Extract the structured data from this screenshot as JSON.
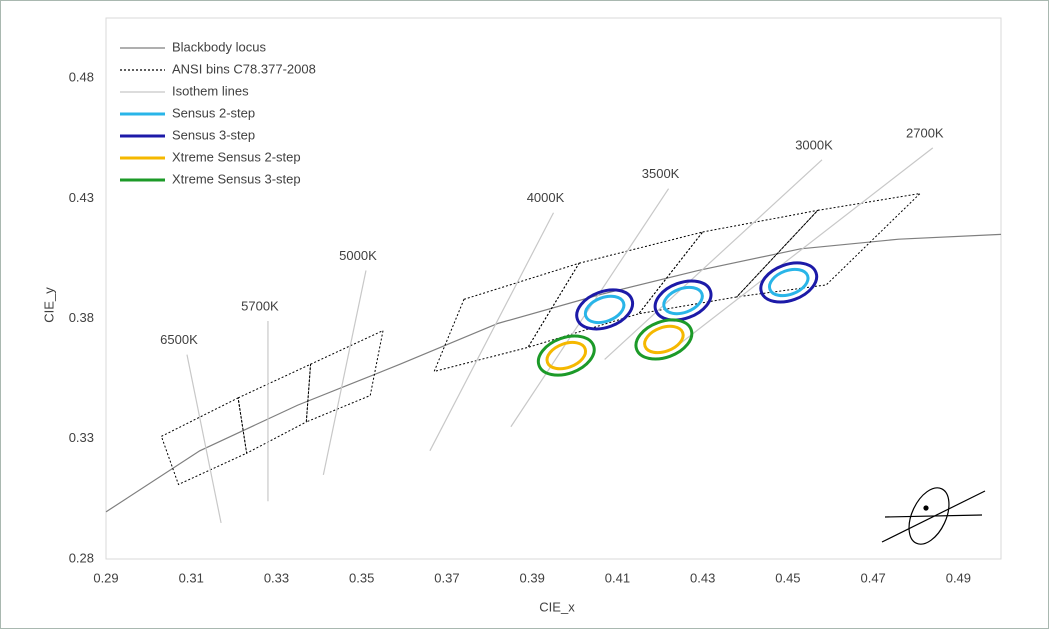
{
  "chart_data": {
    "type": "line",
    "x_label": "CIE_x",
    "y_label": "CIE_y",
    "xlim": [
      0.29,
      0.5
    ],
    "ylim": [
      0.28,
      0.505
    ],
    "xticks": [
      0.29,
      0.31,
      0.33,
      0.35,
      0.37,
      0.39,
      0.41,
      0.43,
      0.45,
      0.47,
      0.49
    ],
    "yticks": [
      0.28,
      0.33,
      0.38,
      0.43,
      0.48
    ],
    "grid": false,
    "series": [
      {
        "name": "Blackbody locus",
        "color": "#7f7f7f",
        "style": "solid",
        "closed": false,
        "segments": [
          {
            "x": [
              0.29,
              0.312,
              0.335,
              0.359,
              0.382,
              0.406,
              0.429,
              0.453,
              0.476,
              0.5
            ],
            "y": [
              0.2996,
              0.325,
              0.344,
              0.361,
              0.378,
              0.39,
              0.4,
              0.409,
              0.413,
              0.415
            ]
          }
        ]
      },
      {
        "name": "ANSI bins C78.377-2008",
        "color": "#000000",
        "style": "dotted",
        "closed": true,
        "segments": [
          {
            "x": [
              0.303,
              0.321,
              0.323,
              0.307
            ],
            "y": [
              0.331,
              0.347,
              0.324,
              0.311
            ]
          },
          {
            "x": [
              0.321,
              0.338,
              0.337,
              0.323
            ],
            "y": [
              0.347,
              0.361,
              0.337,
              0.324
            ]
          },
          {
            "x": [
              0.338,
              0.355,
              0.352,
              0.337
            ],
            "y": [
              0.361,
              0.375,
              0.348,
              0.337
            ]
          },
          {
            "x": [
              0.374,
              0.401,
              0.389,
              0.367
            ],
            "y": [
              0.388,
              0.403,
              0.368,
              0.358
            ]
          },
          {
            "x": [
              0.401,
              0.43,
              0.415,
              0.389
            ],
            "y": [
              0.403,
              0.416,
              0.382,
              0.368
            ]
          },
          {
            "x": [
              0.43,
              0.457,
              0.438,
              0.415
            ],
            "y": [
              0.416,
              0.425,
              0.389,
              0.382
            ]
          },
          {
            "x": [
              0.457,
              0.481,
              0.459,
              0.438
            ],
            "y": [
              0.425,
              0.432,
              0.394,
              0.389
            ]
          }
        ]
      },
      {
        "name": "Isothem lines",
        "color": "#c8c8c8",
        "style": "solid",
        "closed": false,
        "segments": [
          {
            "label": "6500K",
            "x": [
              0.309,
              0.317
            ],
            "y": [
              0.365,
              0.295
            ]
          },
          {
            "label": "5700K",
            "x": [
              0.328,
              0.328
            ],
            "y": [
              0.379,
              0.304
            ]
          },
          {
            "label": "5000K",
            "x": [
              0.351,
              0.341
            ],
            "y": [
              0.4,
              0.315
            ]
          },
          {
            "label": "4000K",
            "x": [
              0.395,
              0.366
            ],
            "y": [
              0.424,
              0.325
            ]
          },
          {
            "label": "3500K",
            "x": [
              0.422,
              0.385
            ],
            "y": [
              0.434,
              0.335
            ]
          },
          {
            "label": "3000K",
            "x": [
              0.458,
              0.407
            ],
            "y": [
              0.446,
              0.363
            ]
          },
          {
            "label": "2700K",
            "x": [
              0.484,
              0.425
            ],
            "y": [
              0.451,
              0.37
            ]
          }
        ]
      },
      {
        "name": "Sensus 2-step",
        "color": "#29b5e8",
        "ellipses": [
          {
            "cx": 0.407,
            "cy": 0.3838,
            "a": 0.0047,
            "b": 0.0028,
            "angle": 20
          },
          {
            "cx": 0.4254,
            "cy": 0.3875,
            "a": 0.0047,
            "b": 0.0028,
            "angle": 20
          },
          {
            "cx": 0.4502,
            "cy": 0.395,
            "a": 0.0047,
            "b": 0.0028,
            "angle": 20
          }
        ]
      },
      {
        "name": "Sensus 3-step",
        "color": "#1c1aa8",
        "ellipses": [
          {
            "cx": 0.407,
            "cy": 0.3838,
            "a": 0.0068,
            "b": 0.0042,
            "angle": 20
          },
          {
            "cx": 0.4254,
            "cy": 0.3875,
            "a": 0.0068,
            "b": 0.0042,
            "angle": 20
          },
          {
            "cx": 0.4502,
            "cy": 0.395,
            "a": 0.0068,
            "b": 0.0042,
            "angle": 20
          }
        ]
      },
      {
        "name": "Xtreme Sensus 2-step",
        "color": "#f5b800",
        "ellipses": [
          {
            "cx": 0.398,
            "cy": 0.3646,
            "a": 0.0047,
            "b": 0.0028,
            "angle": 20
          },
          {
            "cx": 0.4209,
            "cy": 0.3713,
            "a": 0.0047,
            "b": 0.0028,
            "angle": 20
          }
        ]
      },
      {
        "name": "Xtreme Sensus 3-step",
        "color": "#1c9a28",
        "ellipses": [
          {
            "cx": 0.398,
            "cy": 0.3646,
            "a": 0.0068,
            "b": 0.0042,
            "angle": 20
          },
          {
            "cx": 0.4209,
            "cy": 0.3713,
            "a": 0.0068,
            "b": 0.0042,
            "angle": 20
          }
        ]
      }
    ]
  }
}
